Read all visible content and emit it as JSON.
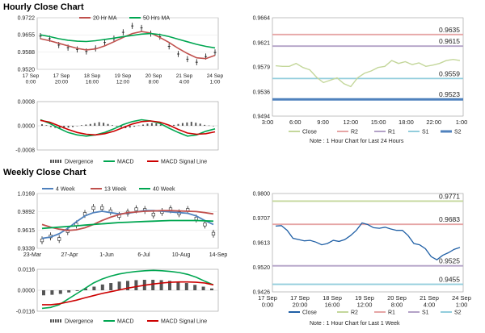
{
  "sections": {
    "hourly_title": "Hourly Close Chart",
    "weekly_title": "Weekly Close Chart"
  },
  "notes": {
    "hourly_levels": "Note : 1 Hour Chart for Last 24 Hours",
    "weekly_levels": "Note : 1 Hour Chart for Last 1 Week"
  },
  "colors": {
    "ma20": "#c0504d",
    "ma50": "#00a651",
    "ma4": "#4f81bd",
    "ma13": "#c0504d",
    "ma40": "#00a651",
    "macd": "#00a651",
    "signal": "#cc0000",
    "divergence": "#555555",
    "close_light": "#c4d79b",
    "close_blue": "#1f5fa5",
    "r2": "#e6a5a5",
    "r1": "#b3a2c7",
    "s1": "#92cddc",
    "s2": "#4f81bd",
    "s2_hourly": "#4f81bd",
    "r2_weekly": "#c4d79b",
    "r1_weekly": "#e6a5a5",
    "s1_weekly": "#b3a2c7",
    "s2_weekly": "#92cddc"
  },
  "chart_data": [
    {
      "id": "hourly-price",
      "type": "line",
      "legend": [
        "20 Hr MA",
        "50 Hrs MA"
      ],
      "ylim": [
        0.952,
        0.9722
      ],
      "yticks": [
        "0.9722",
        "0.9655",
        "0.9588",
        "0.9520"
      ],
      "yticks_v": [
        0.9722,
        0.9655,
        0.9588,
        0.952
      ],
      "xticks": [
        "17 Sep\n0:00",
        "17 Sep\n20:00",
        "18 Sep\n16:00",
        "19 Sep\n12:00",
        "20 Sep\n8:00",
        "21 Sep\n4:00",
        "24 Sep\n1:00"
      ],
      "series": [
        {
          "name": "20 Hr MA",
          "values": [
            0.964,
            0.9632,
            0.9622,
            0.9612,
            0.9602,
            0.9596,
            0.96,
            0.9612,
            0.9628,
            0.9645,
            0.966,
            0.9668,
            0.9662,
            0.9645,
            0.9625,
            0.9602,
            0.9582,
            0.9565,
            0.9562,
            0.9575
          ]
        },
        {
          "name": "50 Hrs MA",
          "values": [
            0.9655,
            0.9648,
            0.964,
            0.9634,
            0.963,
            0.9629,
            0.9632,
            0.9637,
            0.9642,
            0.9648,
            0.9653,
            0.9658,
            0.966,
            0.9656,
            0.9648,
            0.9638,
            0.9628,
            0.9618,
            0.961,
            0.9604
          ]
        }
      ],
      "ohlc_close": [
        0.965,
        0.964,
        0.9615,
        0.9605,
        0.9598,
        0.959,
        0.9602,
        0.9625,
        0.964,
        0.9665,
        0.969,
        0.9682,
        0.966,
        0.9648,
        0.961,
        0.958,
        0.956,
        0.9548,
        0.957,
        0.9586
      ]
    },
    {
      "id": "hourly-macd",
      "type": "bar",
      "legend": [
        "Divergence",
        "MACD",
        "MACD Signal Line"
      ],
      "ylim": [
        -0.0008,
        0.0008
      ],
      "yticks": [
        "0.0008",
        "0.0000",
        "-0.0008"
      ],
      "yticks_v": [
        0.0008,
        0.0,
        -0.0008
      ],
      "divergence": [
        5e-05,
        2e-05,
        -4e-05,
        -7e-05,
        -9e-05,
        -9e-05,
        -6e-05,
        -4e-05,
        -1e-05,
        2e-05,
        4e-05,
        6e-05,
        9e-05,
        0.00012,
        0.0001,
        6e-05,
        2e-05,
        -2e-05,
        -5e-05,
        -8e-05,
        -6e-05,
        -3e-05,
        1e-05,
        4e-05,
        7e-05,
        9e-05,
        8e-05,
        4e-05,
        1e-05,
        -2e-05,
        3e-05,
        6e-05,
        9e-05,
        0.00011,
        0.00013,
        0.0001,
        7e-05,
        3e-05,
        1e-05,
        0.0
      ],
      "series": [
        {
          "name": "MACD",
          "values": [
            0.0002,
            8e-05,
            -8e-05,
            -0.00022,
            -0.0003,
            -0.00034,
            -0.0003,
            -0.00022,
            -0.0001,
            4e-05,
            0.00014,
            0.0002,
            0.00016,
            8e-05,
            -8e-05,
            -0.00022,
            -0.00034,
            -0.0003,
            -0.00018,
            -0.0001
          ]
        },
        {
          "name": "MACD Signal Line",
          "values": [
            0.00018,
            0.00012,
            0.0,
            -0.00012,
            -0.00022,
            -0.00028,
            -0.0003,
            -0.00026,
            -0.00018,
            -6e-05,
            6e-05,
            0.00014,
            0.00016,
            0.00012,
            2e-05,
            -0.00012,
            -0.00024,
            -0.00028,
            -0.00026,
            -0.0002
          ]
        }
      ]
    },
    {
      "id": "hourly-levels",
      "type": "line",
      "ylim": [
        0.9494,
        0.9664
      ],
      "yticks": [
        "0.9664",
        "0.9621",
        "0.9579",
        "0.9536",
        "0.9494"
      ],
      "yticks_v": [
        0.9664,
        0.9621,
        0.9579,
        0.9536,
        0.9494
      ],
      "xticks": [
        "3:00",
        "6:00",
        "9:00",
        "12:00",
        "15:00",
        "18:00",
        "22:00",
        "1:00"
      ],
      "levels": [
        {
          "name": "R2",
          "value": 0.9635,
          "label": "0.9635"
        },
        {
          "name": "R1",
          "value": 0.9615,
          "label": "0.9615"
        },
        {
          "name": "S1",
          "value": 0.9559,
          "label": "0.9559"
        },
        {
          "name": "S2",
          "value": 0.9523,
          "label": "0.9523"
        }
      ],
      "legend": [
        "Close",
        "R2",
        "R1",
        "S1",
        "S2"
      ],
      "series": [
        {
          "name": "Close",
          "values": [
            0.9581,
            0.958,
            0.958,
            0.9585,
            0.9578,
            0.9574,
            0.9561,
            0.9552,
            0.9556,
            0.956,
            0.955,
            0.9545,
            0.956,
            0.9568,
            0.9572,
            0.9578,
            0.958,
            0.959,
            0.9585,
            0.9588,
            0.9583,
            0.9586,
            0.958,
            0.9582,
            0.9585,
            0.959,
            0.9592,
            0.959
          ]
        }
      ]
    },
    {
      "id": "weekly-price",
      "type": "line",
      "legend": [
        "4 Week",
        "13 Week",
        "40 Week"
      ],
      "ylim": [
        0.9339,
        1.0169
      ],
      "yticks": [
        "1.0169",
        "0.9892",
        "0.9615",
        "0.9339"
      ],
      "yticks_v": [
        1.0169,
        0.9892,
        0.9615,
        0.9339
      ],
      "xticks": [
        "23-Mar",
        "27-Apr",
        "1-Jun",
        "6-Jul",
        "10-Aug",
        "14-Sep"
      ],
      "series": [
        {
          "name": "4 Week",
          "values": [
            0.949,
            0.951,
            0.956,
            0.964,
            0.974,
            0.983,
            0.988,
            0.99,
            0.988,
            0.986,
            0.987,
            0.989,
            0.991,
            0.991,
            0.99,
            0.989,
            0.988,
            0.987,
            0.983,
            0.976,
            0.97
          ]
        },
        {
          "name": "13 Week",
          "values": [
            0.97,
            0.966,
            0.963,
            0.961,
            0.962,
            0.965,
            0.97,
            0.976,
            0.981,
            0.985,
            0.988,
            0.989,
            0.99,
            0.9905,
            0.991,
            0.991,
            0.9905,
            0.99,
            0.9895,
            0.988,
            0.986
          ]
        },
        {
          "name": "40 Week",
          "values": [
            0.964,
            0.965,
            0.966,
            0.967,
            0.968,
            0.969,
            0.97,
            0.971,
            0.972,
            0.973,
            0.9735,
            0.974,
            0.9745,
            0.975,
            0.9755,
            0.976,
            0.976,
            0.976,
            0.976,
            0.9755,
            0.975
          ]
        }
      ],
      "close": [
        0.946,
        0.952,
        0.948,
        0.96,
        0.97,
        0.986,
        0.995,
        0.995,
        0.99,
        0.983,
        0.988,
        0.993,
        0.992,
        0.985,
        0.989,
        0.993,
        0.987,
        0.992,
        0.979,
        0.97,
        0.956
      ]
    },
    {
      "id": "weekly-macd",
      "type": "bar",
      "legend": [
        "Divergence",
        "MACD",
        "MACD Signal Line"
      ],
      "ylim": [
        -0.0116,
        0.0116
      ],
      "yticks": [
        "0.0116",
        "0.0000",
        "-0.0116"
      ],
      "yticks_v": [
        0.0116,
        0.0,
        -0.0116
      ],
      "divergence": [
        -0.0028,
        -0.0025,
        -0.002,
        -0.0012,
        -0.0004,
        0.001,
        0.002,
        0.0032,
        0.004,
        0.0048,
        0.0052,
        0.0056,
        0.0058,
        0.0058,
        0.0056,
        0.0052,
        0.0046,
        0.004,
        0.003,
        0.002,
        0.001
      ],
      "series": [
        {
          "name": "MACD",
          "values": [
            -0.01,
            -0.0095,
            -0.008,
            -0.005,
            -0.002,
            0.001,
            0.004,
            0.0062,
            0.0078,
            0.009,
            0.0098,
            0.0104,
            0.0108,
            0.011,
            0.0108,
            0.0104,
            0.0098,
            0.0088,
            0.0072,
            0.005,
            0.003
          ]
        },
        {
          "name": "MACD Signal Line",
          "values": [
            -0.008,
            -0.008,
            -0.0075,
            -0.0065,
            -0.0055,
            -0.0042,
            -0.003,
            -0.0018,
            -0.0008,
            0.0002,
            0.0012,
            0.002,
            0.0028,
            0.0035,
            0.004,
            0.0044,
            0.0046,
            0.0046,
            0.0044,
            0.004,
            0.003
          ]
        }
      ]
    },
    {
      "id": "weekly-levels",
      "type": "line",
      "ylim": [
        0.9426,
        0.98
      ],
      "yticks": [
        "0.9800",
        "0.9707",
        "0.9613",
        "0.9520",
        "0.9426"
      ],
      "yticks_v": [
        0.98,
        0.9707,
        0.9613,
        0.952,
        0.9426
      ],
      "xticks": [
        "17 Sep\n0:00",
        "17 Sep\n20:00",
        "18 Sep\n16:00",
        "19 Sep\n12:00",
        "20 Sep\n8:00",
        "21 Sep\n4:00",
        "24 Sep\n1:00"
      ],
      "levels": [
        {
          "name": "R2",
          "value": 0.9771,
          "label": "0.9771"
        },
        {
          "name": "R1",
          "value": 0.9683,
          "label": "0.9683"
        },
        {
          "name": "S1",
          "value": 0.9525,
          "label": "0.9525"
        },
        {
          "name": "S2",
          "value": 0.9455,
          "label": "0.9455"
        }
      ],
      "legend": [
        "Close",
        "R2",
        "R1",
        "S1",
        "S2"
      ],
      "series": [
        {
          "name": "Close",
          "values": [
            0.9676,
            0.9678,
            0.966,
            0.963,
            0.9625,
            0.962,
            0.9622,
            0.9615,
            0.9605,
            0.961,
            0.9622,
            0.9618,
            0.9625,
            0.964,
            0.966,
            0.9688,
            0.9682,
            0.967,
            0.9668,
            0.9672,
            0.9665,
            0.966,
            0.966,
            0.964,
            0.961,
            0.9605,
            0.959,
            0.956,
            0.9548,
            0.9565,
            0.9575,
            0.9588,
            0.9595
          ]
        }
      ]
    }
  ]
}
